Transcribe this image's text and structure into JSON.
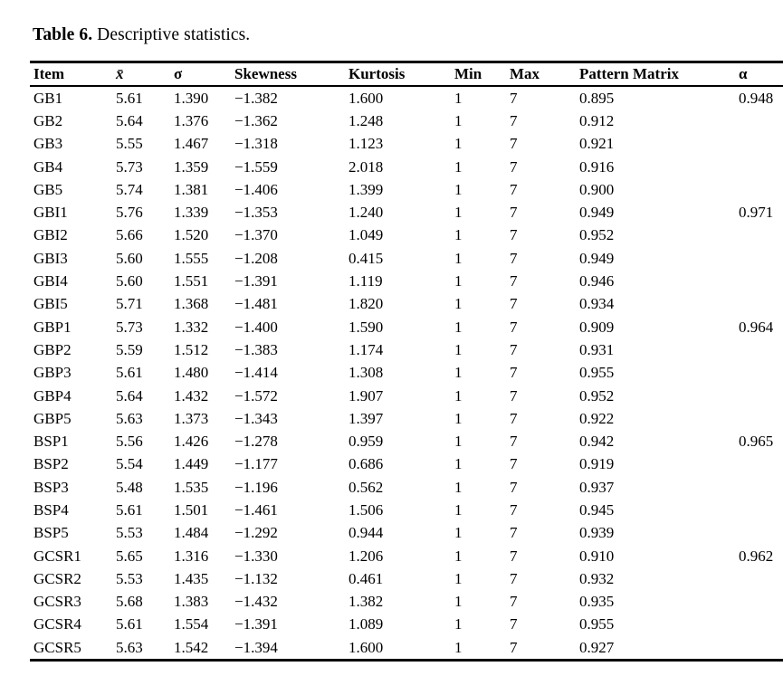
{
  "caption": {
    "label": "Table 6.",
    "text": "Descriptive statistics."
  },
  "table": {
    "columns": [
      "Item",
      "x̄",
      "σ",
      "Skewness",
      "Kurtosis",
      "Min",
      "Max",
      "Pattern Matrix",
      "α"
    ],
    "rows": [
      [
        "GB1",
        "5.61",
        "1.390",
        "−1.382",
        "1.600",
        "1",
        "7",
        "0.895",
        "0.948"
      ],
      [
        "GB2",
        "5.64",
        "1.376",
        "−1.362",
        "1.248",
        "1",
        "7",
        "0.912",
        ""
      ],
      [
        "GB3",
        "5.55",
        "1.467",
        "−1.318",
        "1.123",
        "1",
        "7",
        "0.921",
        ""
      ],
      [
        "GB4",
        "5.73",
        "1.359",
        "−1.559",
        "2.018",
        "1",
        "7",
        "0.916",
        ""
      ],
      [
        "GB5",
        "5.74",
        "1.381",
        "−1.406",
        "1.399",
        "1",
        "7",
        "0.900",
        ""
      ],
      [
        "GBI1",
        "5.76",
        "1.339",
        "−1.353",
        "1.240",
        "1",
        "7",
        "0.949",
        "0.971"
      ],
      [
        "GBI2",
        "5.66",
        "1.520",
        "−1.370",
        "1.049",
        "1",
        "7",
        "0.952",
        ""
      ],
      [
        "GBI3",
        "5.60",
        "1.555",
        "−1.208",
        "0.415",
        "1",
        "7",
        "0.949",
        ""
      ],
      [
        "GBI4",
        "5.60",
        "1.551",
        "−1.391",
        "1.119",
        "1",
        "7",
        "0.946",
        ""
      ],
      [
        "GBI5",
        "5.71",
        "1.368",
        "−1.481",
        "1.820",
        "1",
        "7",
        "0.934",
        ""
      ],
      [
        "GBP1",
        "5.73",
        "1.332",
        "−1.400",
        "1.590",
        "1",
        "7",
        "0.909",
        "0.964"
      ],
      [
        "GBP2",
        "5.59",
        "1.512",
        "−1.383",
        "1.174",
        "1",
        "7",
        "0.931",
        ""
      ],
      [
        "GBP3",
        "5.61",
        "1.480",
        "−1.414",
        "1.308",
        "1",
        "7",
        "0.955",
        ""
      ],
      [
        "GBP4",
        "5.64",
        "1.432",
        "−1.572",
        "1.907",
        "1",
        "7",
        "0.952",
        ""
      ],
      [
        "GBP5",
        "5.63",
        "1.373",
        "−1.343",
        "1.397",
        "1",
        "7",
        "0.922",
        ""
      ],
      [
        "BSP1",
        "5.56",
        "1.426",
        "−1.278",
        "0.959",
        "1",
        "7",
        "0.942",
        "0.965"
      ],
      [
        "BSP2",
        "5.54",
        "1.449",
        "−1.177",
        "0.686",
        "1",
        "7",
        "0.919",
        ""
      ],
      [
        "BSP3",
        "5.48",
        "1.535",
        "−1.196",
        "0.562",
        "1",
        "7",
        "0.937",
        ""
      ],
      [
        "BSP4",
        "5.61",
        "1.501",
        "−1.461",
        "1.506",
        "1",
        "7",
        "0.945",
        ""
      ],
      [
        "BSP5",
        "5.53",
        "1.484",
        "−1.292",
        "0.944",
        "1",
        "7",
        "0.939",
        ""
      ],
      [
        "GCSR1",
        "5.65",
        "1.316",
        "−1.330",
        "1.206",
        "1",
        "7",
        "0.910",
        "0.962"
      ],
      [
        "GCSR2",
        "5.53",
        "1.435",
        "−1.132",
        "0.461",
        "1",
        "7",
        "0.932",
        ""
      ],
      [
        "GCSR3",
        "5.68",
        "1.383",
        "−1.432",
        "1.382",
        "1",
        "7",
        "0.935",
        ""
      ],
      [
        "GCSR4",
        "5.61",
        "1.554",
        "−1.391",
        "1.089",
        "1",
        "7",
        "0.955",
        ""
      ],
      [
        "GCSR5",
        "5.63",
        "1.542",
        "−1.394",
        "1.600",
        "1",
        "7",
        "0.927",
        ""
      ]
    ]
  }
}
